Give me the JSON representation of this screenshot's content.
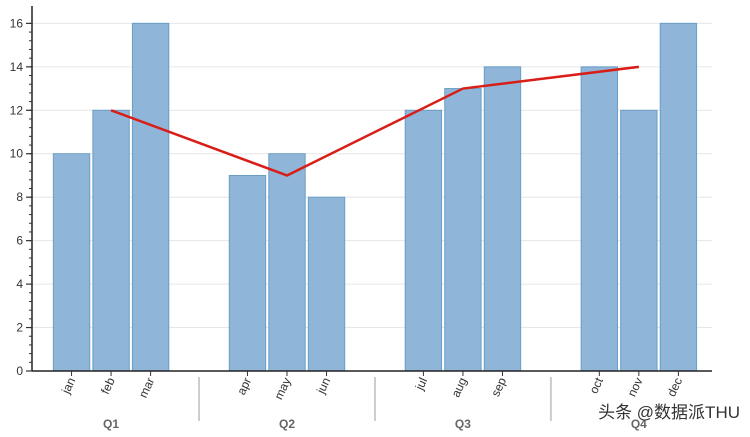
{
  "chart_data": {
    "type": "bar",
    "groups": [
      {
        "label": "Q1",
        "categories": [
          "jan",
          "feb",
          "mar"
        ],
        "values": [
          10,
          12,
          16
        ]
      },
      {
        "label": "Q2",
        "categories": [
          "apr",
          "may",
          "jun"
        ],
        "values": [
          9,
          10,
          8
        ]
      },
      {
        "label": "Q3",
        "categories": [
          "jul",
          "aug",
          "sep"
        ],
        "values": [
          12,
          13,
          14
        ]
      },
      {
        "label": "Q4",
        "categories": [
          "oct",
          "nov",
          "dec"
        ],
        "values": [
          14,
          12,
          16
        ]
      }
    ],
    "line": {
      "points": [
        {
          "category": "feb",
          "value": 12
        },
        {
          "category": "may",
          "value": 9
        },
        {
          "category": "aug",
          "value": 13
        },
        {
          "category": "nov",
          "value": 14
        }
      ],
      "color": "#d91e18"
    },
    "ylim": [
      0,
      16.8
    ],
    "yticks": [
      0,
      2,
      4,
      6,
      8,
      10,
      12,
      14,
      16
    ],
    "grid": true,
    "bar_color": "#8fb5d9",
    "bar_edge_color": "#6a9ec4",
    "title": "",
    "xlabel": "",
    "ylabel": ""
  },
  "watermark": {
    "text": "头条 @数据派THU"
  }
}
